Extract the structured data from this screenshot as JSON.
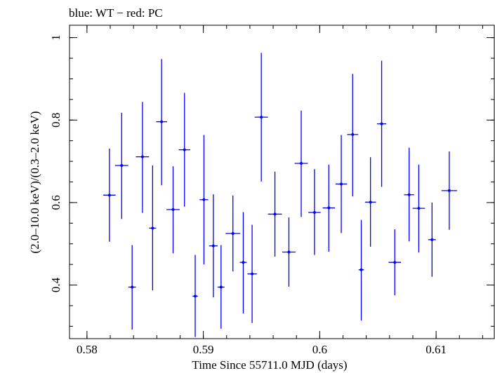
{
  "chart_data": {
    "type": "scatter",
    "title": "blue: WT − red: PC",
    "xlabel": "Time Since 55711.0 MJD (days)",
    "ylabel": "(2.0–10.0 keV)/(0.3–2.0 keV)",
    "xlim": [
      0.5785,
      0.615
    ],
    "ylim": [
      0.27,
      1.03
    ],
    "xticks": [
      {
        "value": 0.58,
        "label": "0.58"
      },
      {
        "value": 0.59,
        "label": "0.59"
      },
      {
        "value": 0.6,
        "label": "0.6"
      },
      {
        "value": 0.61,
        "label": "0.61"
      }
    ],
    "yticks": [
      {
        "value": 0.4,
        "label": "0.4"
      },
      {
        "value": 0.6,
        "label": "0.6"
      },
      {
        "value": 0.8,
        "label": "0.8"
      },
      {
        "value": 1.0,
        "label": "1"
      }
    ],
    "x_minor_step": 0.002,
    "y_minor_step": 0.05,
    "grid": false,
    "colors": {
      "WT": "#0000ff",
      "PC": "#ff0000",
      "axes": "#000000"
    },
    "series": [
      {
        "name": "WT",
        "points": [
          {
            "x": 0.58193,
            "xerr": 0.00053,
            "y": 0.618,
            "ylo": 0.505,
            "yhi": 0.731
          },
          {
            "x": 0.58298,
            "xerr": 0.00057,
            "y": 0.69,
            "ylo": 0.56,
            "yhi": 0.818
          },
          {
            "x": 0.58388,
            "xerr": 0.00033,
            "y": 0.395,
            "ylo": 0.292,
            "yhi": 0.497
          },
          {
            "x": 0.58477,
            "xerr": 0.00057,
            "y": 0.711,
            "ylo": 0.575,
            "yhi": 0.844
          },
          {
            "x": 0.58564,
            "xerr": 0.0003,
            "y": 0.538,
            "ylo": 0.387,
            "yhi": 0.69
          },
          {
            "x": 0.58641,
            "xerr": 0.00047,
            "y": 0.796,
            "ylo": 0.642,
            "yhi": 0.948
          },
          {
            "x": 0.5874,
            "xerr": 0.00057,
            "y": 0.583,
            "ylo": 0.477,
            "yhi": 0.688
          },
          {
            "x": 0.58838,
            "xerr": 0.0005,
            "y": 0.728,
            "ylo": 0.59,
            "yhi": 0.866
          },
          {
            "x": 0.5893,
            "xerr": 0.00023,
            "y": 0.373,
            "ylo": 0.274,
            "yhi": 0.473
          },
          {
            "x": 0.59005,
            "xerr": 0.00037,
            "y": 0.607,
            "ylo": 0.45,
            "yhi": 0.764
          },
          {
            "x": 0.59086,
            "xerr": 0.00037,
            "y": 0.495,
            "ylo": 0.37,
            "yhi": 0.62
          },
          {
            "x": 0.59152,
            "xerr": 0.0003,
            "y": 0.395,
            "ylo": 0.294,
            "yhi": 0.497
          },
          {
            "x": 0.59254,
            "xerr": 0.00063,
            "y": 0.525,
            "ylo": 0.433,
            "yhi": 0.617
          },
          {
            "x": 0.59343,
            "xerr": 0.0003,
            "y": 0.455,
            "ylo": 0.331,
            "yhi": 0.577
          },
          {
            "x": 0.59419,
            "xerr": 0.0004,
            "y": 0.427,
            "ylo": 0.308,
            "yhi": 0.546
          },
          {
            "x": 0.59498,
            "xerr": 0.00057,
            "y": 0.807,
            "ylo": 0.651,
            "yhi": 0.963
          },
          {
            "x": 0.59615,
            "xerr": 0.0006,
            "y": 0.572,
            "ylo": 0.469,
            "yhi": 0.675
          },
          {
            "x": 0.59735,
            "xerr": 0.00057,
            "y": 0.48,
            "ylo": 0.396,
            "yhi": 0.564
          },
          {
            "x": 0.59841,
            "xerr": 0.00057,
            "y": 0.695,
            "ylo": 0.565,
            "yhi": 0.823
          },
          {
            "x": 0.59955,
            "xerr": 0.00053,
            "y": 0.576,
            "ylo": 0.473,
            "yhi": 0.681
          },
          {
            "x": 0.60078,
            "xerr": 0.00053,
            "y": 0.587,
            "ylo": 0.481,
            "yhi": 0.692
          },
          {
            "x": 0.60185,
            "xerr": 0.0005,
            "y": 0.645,
            "ylo": 0.526,
            "yhi": 0.764
          },
          {
            "x": 0.60283,
            "xerr": 0.00047,
            "y": 0.765,
            "ylo": 0.615,
            "yhi": 0.912
          },
          {
            "x": 0.60357,
            "xerr": 0.00023,
            "y": 0.437,
            "ylo": 0.314,
            "yhi": 0.558
          },
          {
            "x": 0.60436,
            "xerr": 0.00047,
            "y": 0.601,
            "ylo": 0.493,
            "yhi": 0.71
          },
          {
            "x": 0.60532,
            "xerr": 0.0004,
            "y": 0.791,
            "ylo": 0.638,
            "yhi": 0.944
          },
          {
            "x": 0.60645,
            "xerr": 0.00053,
            "y": 0.455,
            "ylo": 0.375,
            "yhi": 0.535
          },
          {
            "x": 0.60768,
            "xerr": 0.00043,
            "y": 0.619,
            "ylo": 0.506,
            "yhi": 0.733
          },
          {
            "x": 0.60851,
            "xerr": 0.00053,
            "y": 0.586,
            "ylo": 0.479,
            "yhi": 0.692
          },
          {
            "x": 0.60965,
            "xerr": 0.00033,
            "y": 0.51,
            "ylo": 0.42,
            "yhi": 0.6
          },
          {
            "x": 0.61113,
            "xerr": 0.00067,
            "y": 0.629,
            "ylo": 0.534,
            "yhi": 0.724
          }
        ]
      },
      {
        "name": "PC",
        "points": []
      }
    ]
  }
}
